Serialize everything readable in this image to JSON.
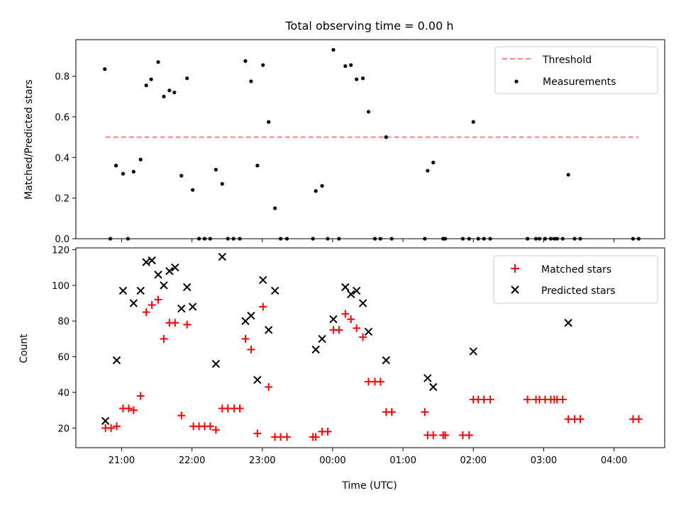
{
  "chart_data": {
    "type": "scatter",
    "title": "Total observing time = 0.00 h",
    "xlabel": "Time (UTC)",
    "x_tick_labels": [
      "21:00",
      "22:00",
      "23:00",
      "00:00",
      "01:00",
      "02:00",
      "03:00",
      "04:00"
    ],
    "x_tick_hours": [
      21,
      22,
      23,
      24,
      25,
      26,
      27,
      28
    ],
    "xlim_hours": [
      20.35,
      28.72
    ],
    "colors": {
      "threshold": "#ff7f7f",
      "measurements": "#000000",
      "matched": "#ff0000",
      "predicted": "#000000"
    },
    "top": {
      "ylabel": "Matched/Predicted stars",
      "ylim": [
        0,
        0.98
      ],
      "yticks": [
        0.0,
        0.2,
        0.4,
        0.6,
        0.8
      ],
      "ytick_labels": [
        "0.0",
        "0.2",
        "0.4",
        "0.6",
        "0.8"
      ],
      "legend": {
        "location": "upper right",
        "threshold_label": "Threshold",
        "measurements_label": "Measurements"
      },
      "threshold": {
        "value": 0.5,
        "x_start": 20.77,
        "x_end": 28.35
      },
      "measurements": [
        [
          20.76,
          0.835
        ],
        [
          20.84,
          0
        ],
        [
          20.92,
          0.36
        ],
        [
          21.02,
          0.32
        ],
        [
          21.09,
          0
        ],
        [
          21.17,
          0.33
        ],
        [
          21.27,
          0.39
        ],
        [
          21.35,
          0.755
        ],
        [
          21.42,
          0.785
        ],
        [
          21.52,
          0.87
        ],
        [
          21.6,
          0.7
        ],
        [
          21.68,
          0.73
        ],
        [
          21.75,
          0.72
        ],
        [
          21.85,
          0.31
        ],
        [
          21.93,
          0.79
        ],
        [
          22.01,
          0.24
        ],
        [
          22.1,
          0
        ],
        [
          22.18,
          0
        ],
        [
          22.26,
          0
        ],
        [
          22.34,
          0.34
        ],
        [
          22.43,
          0.27
        ],
        [
          22.51,
          0
        ],
        [
          22.59,
          0
        ],
        [
          22.68,
          0
        ],
        [
          22.76,
          0.875
        ],
        [
          22.84,
          0.775
        ],
        [
          22.93,
          0.36
        ],
        [
          23.01,
          0.855
        ],
        [
          23.09,
          0.575
        ],
        [
          23.18,
          0.15
        ],
        [
          23.26,
          0
        ],
        [
          23.35,
          0
        ],
        [
          23.72,
          0
        ],
        [
          23.76,
          0.235
        ],
        [
          23.85,
          0.26
        ],
        [
          23.93,
          0
        ],
        [
          24.01,
          0.93
        ],
        [
          24.09,
          0
        ],
        [
          24.18,
          0.85
        ],
        [
          24.26,
          0.855
        ],
        [
          24.34,
          0.785
        ],
        [
          24.43,
          0.79
        ],
        [
          24.51,
          0.625
        ],
        [
          24.6,
          0
        ],
        [
          24.68,
          0
        ],
        [
          24.76,
          0.5
        ],
        [
          24.84,
          0
        ],
        [
          25.31,
          0
        ],
        [
          25.35,
          0.335
        ],
        [
          25.43,
          0.375
        ],
        [
          25.57,
          0
        ],
        [
          25.6,
          0
        ],
        [
          25.85,
          0
        ],
        [
          25.94,
          0
        ],
        [
          26.0,
          0.575
        ],
        [
          26.07,
          0
        ],
        [
          26.15,
          0
        ],
        [
          26.24,
          0
        ],
        [
          26.77,
          0
        ],
        [
          26.89,
          0
        ],
        [
          26.94,
          0
        ],
        [
          27.02,
          0
        ],
        [
          27.1,
          0
        ],
        [
          27.15,
          0
        ],
        [
          27.19,
          0
        ],
        [
          27.27,
          0
        ],
        [
          27.35,
          0.315
        ],
        [
          27.44,
          0
        ],
        [
          27.52,
          0
        ],
        [
          28.27,
          0
        ],
        [
          28.35,
          0
        ]
      ]
    },
    "bottom": {
      "ylabel": "Count",
      "ylim": [
        9,
        121
      ],
      "yticks": [
        20,
        40,
        60,
        80,
        100,
        120
      ],
      "ytick_labels": [
        "20",
        "40",
        "60",
        "80",
        "100",
        "120"
      ],
      "legend": {
        "location": "upper right",
        "matched_label": "Matched stars",
        "predicted_label": "Predicted stars"
      },
      "matched": [
        [
          20.77,
          20
        ],
        [
          20.85,
          20
        ],
        [
          20.93,
          21
        ],
        [
          21.02,
          31
        ],
        [
          21.1,
          31
        ],
        [
          21.17,
          30
        ],
        [
          21.27,
          38
        ],
        [
          21.35,
          85
        ],
        [
          21.43,
          89
        ],
        [
          21.52,
          92
        ],
        [
          21.6,
          70
        ],
        [
          21.68,
          79
        ],
        [
          21.76,
          79
        ],
        [
          21.85,
          27
        ],
        [
          21.93,
          78
        ],
        [
          22.02,
          21
        ],
        [
          22.1,
          21
        ],
        [
          22.18,
          21
        ],
        [
          22.26,
          21
        ],
        [
          22.34,
          19
        ],
        [
          22.43,
          31
        ],
        [
          22.51,
          31
        ],
        [
          22.6,
          31
        ],
        [
          22.68,
          31
        ],
        [
          22.76,
          70
        ],
        [
          22.84,
          64
        ],
        [
          22.93,
          17
        ],
        [
          23.01,
          88
        ],
        [
          23.09,
          43
        ],
        [
          23.18,
          15
        ],
        [
          23.26,
          15
        ],
        [
          23.35,
          15
        ],
        [
          23.72,
          15
        ],
        [
          23.76,
          15
        ],
        [
          23.85,
          18
        ],
        [
          23.93,
          18
        ],
        [
          24.01,
          75
        ],
        [
          24.09,
          75
        ],
        [
          24.18,
          84
        ],
        [
          24.26,
          81
        ],
        [
          24.34,
          76
        ],
        [
          24.43,
          71
        ],
        [
          24.51,
          46
        ],
        [
          24.6,
          46
        ],
        [
          24.68,
          46
        ],
        [
          24.76,
          29
        ],
        [
          24.84,
          29
        ],
        [
          25.31,
          29
        ],
        [
          25.35,
          16
        ],
        [
          25.43,
          16
        ],
        [
          25.57,
          16
        ],
        [
          25.6,
          16
        ],
        [
          25.85,
          16
        ],
        [
          25.94,
          16
        ],
        [
          26.0,
          36
        ],
        [
          26.07,
          36
        ],
        [
          26.15,
          36
        ],
        [
          26.24,
          36
        ],
        [
          26.77,
          36
        ],
        [
          26.89,
          36
        ],
        [
          26.94,
          36
        ],
        [
          27.02,
          36
        ],
        [
          27.1,
          36
        ],
        [
          27.15,
          36
        ],
        [
          27.19,
          36
        ],
        [
          27.27,
          36
        ],
        [
          27.35,
          25
        ],
        [
          27.44,
          25
        ],
        [
          27.52,
          25
        ],
        [
          28.27,
          25
        ],
        [
          28.35,
          25
        ]
      ],
      "predicted": [
        [
          20.77,
          24
        ],
        [
          20.93,
          58
        ],
        [
          21.02,
          97
        ],
        [
          21.17,
          90
        ],
        [
          21.27,
          97
        ],
        [
          21.35,
          113
        ],
        [
          21.43,
          114
        ],
        [
          21.52,
          106
        ],
        [
          21.6,
          100
        ],
        [
          21.68,
          108
        ],
        [
          21.76,
          110
        ],
        [
          21.85,
          87
        ],
        [
          21.93,
          99
        ],
        [
          22.01,
          88
        ],
        [
          22.34,
          56
        ],
        [
          22.43,
          116
        ],
        [
          22.76,
          80
        ],
        [
          22.84,
          83
        ],
        [
          22.93,
          47
        ],
        [
          23.01,
          103
        ],
        [
          23.09,
          75
        ],
        [
          23.18,
          97
        ],
        [
          23.76,
          64
        ],
        [
          23.85,
          70
        ],
        [
          24.01,
          81
        ],
        [
          24.18,
          99
        ],
        [
          24.26,
          95
        ],
        [
          24.34,
          97
        ],
        [
          24.43,
          90
        ],
        [
          24.51,
          74
        ],
        [
          24.76,
          58
        ],
        [
          25.35,
          48
        ],
        [
          25.43,
          43
        ],
        [
          26.0,
          63
        ],
        [
          27.35,
          79
        ]
      ]
    }
  }
}
